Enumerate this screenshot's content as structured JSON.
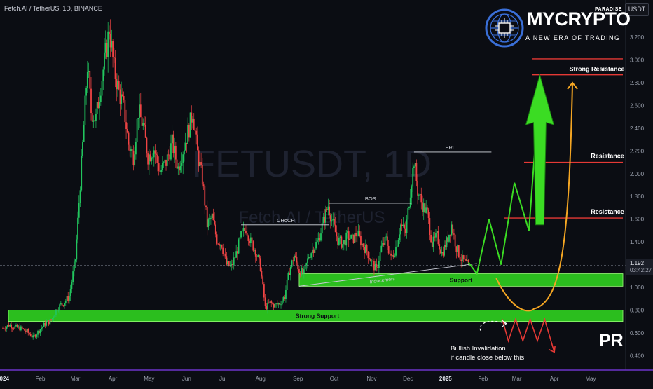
{
  "header": {
    "title": "Fetch.AI / TetherUS, 1D, BINANCE",
    "currency": "USDT"
  },
  "logo": {
    "name": "MYCRYPTO",
    "superscript": "PARADISE",
    "tagline": "A NEW ERA OF TRADING",
    "icon": "globe-circuit-icon"
  },
  "watermark": {
    "symbol": "FETUSDT, 1D",
    "name": "Fetch.AI / TetherUS"
  },
  "price_scale": {
    "ticks": [
      "0.400",
      "0.600",
      "0.800",
      "1.000",
      "1.200",
      "1.400",
      "1.600",
      "1.800",
      "2.000",
      "2.200",
      "2.400",
      "2.600",
      "2.800",
      "3.000",
      "3.200"
    ]
  },
  "time_scale": {
    "ticks": [
      "2024",
      "Feb",
      "Mar",
      "Apr",
      "May",
      "Jun",
      "Jul",
      "Aug",
      "Sep",
      "Oct",
      "Nov",
      "Dec",
      "2025",
      "Feb",
      "Mar",
      "Apr",
      "May"
    ]
  },
  "last_price": {
    "value": "1.192",
    "countdown": "03:42:27"
  },
  "annotations": {
    "erl": "ERL",
    "bos": "BOS",
    "choch": "CHoCH",
    "inducement": "Inducement",
    "support": "Support",
    "strong_support": "Strong Support",
    "resistance_1": "Resistance",
    "resistance_2": "Resistance",
    "strong_resistance": "Strong Resistance",
    "invalidation_1": "Bullish Invalidation",
    "invalidation_2": "if candle close below this",
    "pr": "PR"
  },
  "colors": {
    "background": "#0b0d13",
    "bullish": "#22c55e",
    "bearish": "#ef4444",
    "zone_green": "#2ecc1f",
    "resistance_line": "#e53935",
    "projection_green": "#3bdc23",
    "curve_orange": "#f5a623",
    "invalidation_red": "#e53935",
    "text": "#c9ccd6"
  },
  "chart_data": {
    "type": "candlestick",
    "symbol": "FETUSDT",
    "interval": "1D",
    "exchange": "BINANCE",
    "ylim": [
      0.32,
      3.45
    ],
    "grid": false,
    "close_path": [
      [
        "2024-01-01",
        0.64
      ],
      [
        "2024-01-06",
        0.67
      ],
      [
        "2024-01-11",
        0.65
      ],
      [
        "2024-01-16",
        0.64
      ],
      [
        "2024-01-21",
        0.61
      ],
      [
        "2024-01-26",
        0.56
      ],
      [
        "2024-01-31",
        0.62
      ],
      [
        "2024-02-05",
        0.68
      ],
      [
        "2024-02-10",
        0.71
      ],
      [
        "2024-02-15",
        0.82
      ],
      [
        "2024-02-20",
        0.86
      ],
      [
        "2024-02-25",
        0.92
      ],
      [
        "2024-03-01",
        1.25
      ],
      [
        "2024-03-04",
        1.75
      ],
      [
        "2024-03-07",
        2.25
      ],
      [
        "2024-03-11",
        2.95
      ],
      [
        "2024-03-14",
        2.55
      ],
      [
        "2024-03-18",
        2.48
      ],
      [
        "2024-03-22",
        2.78
      ],
      [
        "2024-03-27",
        3.12
      ],
      [
        "2024-03-29",
        3.28
      ],
      [
        "2024-04-02",
        2.92
      ],
      [
        "2024-04-06",
        2.72
      ],
      [
        "2024-04-10",
        2.58
      ],
      [
        "2024-04-14",
        2.26
      ],
      [
        "2024-04-18",
        2.15
      ],
      [
        "2024-04-22",
        2.55
      ],
      [
        "2024-04-26",
        2.42
      ],
      [
        "2024-04-30",
        2.15
      ],
      [
        "2024-05-05",
        2.22
      ],
      [
        "2024-05-10",
        2.02
      ],
      [
        "2024-05-15",
        2.1
      ],
      [
        "2024-05-20",
        2.27
      ],
      [
        "2024-05-25",
        2.05
      ],
      [
        "2024-05-30",
        2.25
      ],
      [
        "2024-06-03",
        2.4
      ],
      [
        "2024-06-06",
        2.55
      ],
      [
        "2024-06-10",
        2.18
      ],
      [
        "2024-06-14",
        1.95
      ],
      [
        "2024-06-18",
        1.55
      ],
      [
        "2024-06-22",
        1.62
      ],
      [
        "2024-06-26",
        1.42
      ],
      [
        "2024-06-30",
        1.38
      ],
      [
        "2024-07-04",
        1.2
      ],
      [
        "2024-07-08",
        1.18
      ],
      [
        "2024-07-12",
        1.3
      ],
      [
        "2024-07-16",
        1.45
      ],
      [
        "2024-07-20",
        1.52
      ],
      [
        "2024-07-24",
        1.4
      ],
      [
        "2024-07-28",
        1.32
      ],
      [
        "2024-08-01",
        1.18
      ],
      [
        "2024-08-05",
        0.82
      ],
      [
        "2024-08-09",
        0.86
      ],
      [
        "2024-08-13",
        0.84
      ],
      [
        "2024-08-17",
        0.86
      ],
      [
        "2024-08-21",
        0.92
      ],
      [
        "2024-08-25",
        1.15
      ],
      [
        "2024-08-29",
        1.28
      ],
      [
        "2024-09-02",
        1.15
      ],
      [
        "2024-09-06",
        1.12
      ],
      [
        "2024-09-10",
        1.28
      ],
      [
        "2024-09-14",
        1.35
      ],
      [
        "2024-09-18",
        1.42
      ],
      [
        "2024-09-22",
        1.58
      ],
      [
        "2024-09-26",
        1.72
      ],
      [
        "2024-09-30",
        1.55
      ],
      [
        "2024-10-04",
        1.42
      ],
      [
        "2024-10-08",
        1.38
      ],
      [
        "2024-10-12",
        1.45
      ],
      [
        "2024-10-16",
        1.42
      ],
      [
        "2024-10-20",
        1.48
      ],
      [
        "2024-10-24",
        1.38
      ],
      [
        "2024-10-28",
        1.32
      ],
      [
        "2024-11-01",
        1.22
      ],
      [
        "2024-11-05",
        1.15
      ],
      [
        "2024-11-09",
        1.35
      ],
      [
        "2024-11-13",
        1.42
      ],
      [
        "2024-11-17",
        1.25
      ],
      [
        "2024-11-21",
        1.35
      ],
      [
        "2024-11-25",
        1.55
      ],
      [
        "2024-11-29",
        1.48
      ],
      [
        "2024-12-03",
        1.85
      ],
      [
        "2024-12-06",
        2.12
      ],
      [
        "2024-12-09",
        1.85
      ],
      [
        "2024-12-13",
        1.72
      ],
      [
        "2024-12-17",
        1.65
      ],
      [
        "2024-12-21",
        1.38
      ],
      [
        "2024-12-25",
        1.45
      ],
      [
        "2024-12-29",
        1.3
      ],
      [
        "2025-01-02",
        1.4
      ],
      [
        "2025-01-06",
        1.55
      ],
      [
        "2025-01-10",
        1.35
      ],
      [
        "2025-01-14",
        1.25
      ],
      [
        "2025-01-17",
        1.22
      ],
      [
        "2025-01-20",
        1.19
      ]
    ],
    "levels": [
      {
        "label": "Strong Resistance",
        "price": 2.87
      },
      {
        "label": "",
        "price": 3.01
      },
      {
        "label": "Resistance",
        "price": 2.1
      },
      {
        "label": "Resistance",
        "price": 1.61
      },
      {
        "label": "ERL",
        "price": 2.19
      },
      {
        "label": "BOS",
        "price": 1.74
      },
      {
        "label": "CHoCH",
        "price": 1.55
      }
    ],
    "zones": [
      {
        "label": "Support",
        "from": 1.01,
        "to": 1.12
      },
      {
        "label": "Strong Support",
        "from": 0.7,
        "to": 0.8
      }
    ],
    "projection_zigzag": [
      [
        "2025-01-20",
        1.22
      ],
      [
        "2025-01-27",
        1.12
      ],
      [
        "2025-02-06",
        1.6
      ],
      [
        "2025-02-16",
        1.2
      ],
      [
        "2025-02-27",
        1.92
      ],
      [
        "2025-03-11",
        1.5
      ],
      [
        "2025-03-20",
        2.8
      ]
    ],
    "invalidation_path": [
      [
        "2025-02-17",
        0.72
      ],
      [
        "2025-02-22",
        0.53
      ],
      [
        "2025-02-28",
        0.72
      ],
      [
        "2025-03-06",
        0.53
      ],
      [
        "2025-03-12",
        0.72
      ],
      [
        "2025-03-18",
        0.53
      ],
      [
        "2025-03-24",
        0.72
      ],
      [
        "2025-04-01",
        0.43
      ]
    ],
    "last_price": 1.192
  }
}
